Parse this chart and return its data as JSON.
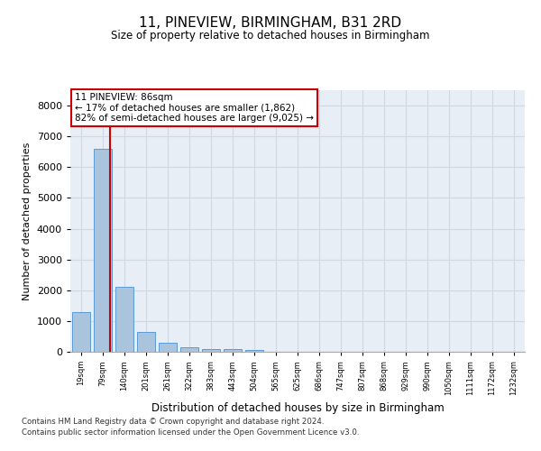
{
  "title": "11, PINEVIEW, BIRMINGHAM, B31 2RD",
  "subtitle": "Size of property relative to detached houses in Birmingham",
  "xlabel": "Distribution of detached houses by size in Birmingham",
  "ylabel": "Number of detached properties",
  "categories": [
    "19sqm",
    "79sqm",
    "140sqm",
    "201sqm",
    "261sqm",
    "322sqm",
    "383sqm",
    "443sqm",
    "504sqm",
    "565sqm",
    "625sqm",
    "686sqm",
    "747sqm",
    "807sqm",
    "868sqm",
    "929sqm",
    "990sqm",
    "1050sqm",
    "1111sqm",
    "1172sqm",
    "1232sqm"
  ],
  "values": [
    1300,
    6600,
    2100,
    650,
    280,
    150,
    100,
    80,
    60,
    0,
    0,
    0,
    0,
    0,
    0,
    0,
    0,
    0,
    0,
    0,
    0
  ],
  "bar_color": "#aac4de",
  "bar_edge_color": "#5b9bd5",
  "grid_color": "#d0d8e4",
  "background_color": "#e8eef5",
  "vline_x": 1.35,
  "vline_color": "#cc0000",
  "annotation_text": "11 PINEVIEW: 86sqm\n← 17% of detached houses are smaller (1,862)\n82% of semi-detached houses are larger (9,025) →",
  "annotation_box_color": "#ffffff",
  "annotation_edge_color": "#cc0000",
  "ylim": [
    0,
    8500
  ],
  "yticks": [
    0,
    1000,
    2000,
    3000,
    4000,
    5000,
    6000,
    7000,
    8000
  ],
  "footer_line1": "Contains HM Land Registry data © Crown copyright and database right 2024.",
  "footer_line2": "Contains public sector information licensed under the Open Government Licence v3.0."
}
